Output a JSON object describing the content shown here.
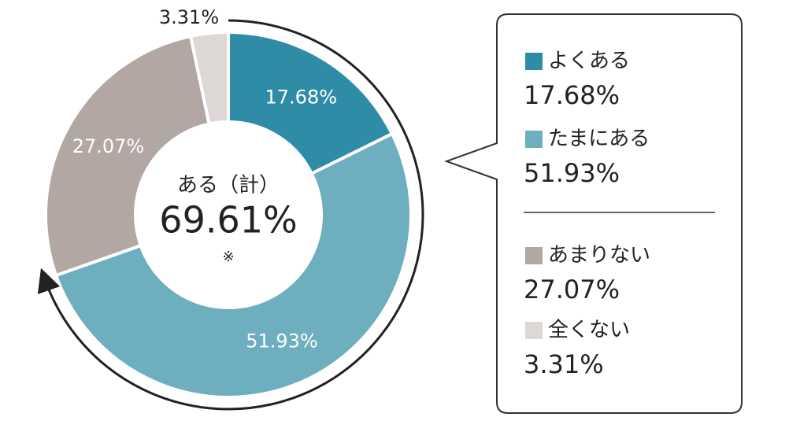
{
  "chart_data": {
    "type": "donut",
    "categories": [
      "よくある",
      "たまにある",
      "あまりない",
      "全くない"
    ],
    "values": [
      17.68,
      51.93,
      27.07,
      3.31
    ],
    "value_labels": [
      "17.68%",
      "51.93%",
      "27.07%",
      "3.31%"
    ],
    "colors": [
      "#2f8ca6",
      "#6daebf",
      "#b3a7a4",
      "#ddd7d6"
    ],
    "center_label": "ある（計）",
    "center_value": "69.61%",
    "center_note": "※"
  }
}
